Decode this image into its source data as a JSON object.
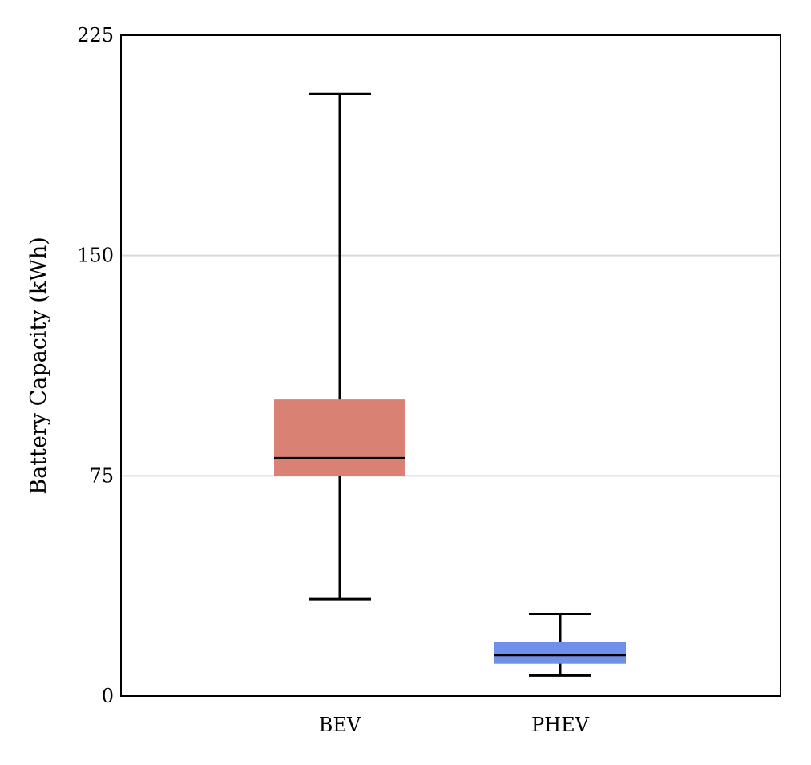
{
  "chart_data": {
    "type": "box",
    "ylabel": "Battery Capacity (kWh)",
    "xlabel": "",
    "title": "",
    "ylim": [
      0,
      225
    ],
    "yticks": [
      0,
      75,
      150,
      225
    ],
    "grid": "horizontal",
    "categories": [
      "BEV",
      "PHEV"
    ],
    "boxes": [
      {
        "category": "BEV",
        "whisker_low": 33,
        "q1": 75,
        "median": 81,
        "q3": 101,
        "whisker_high": 205,
        "color": "#d98274"
      },
      {
        "category": "PHEV",
        "whisker_low": 7,
        "q1": 11,
        "median": 14,
        "q3": 18.5,
        "whisker_high": 28,
        "color": "#6f8fe8"
      }
    ]
  }
}
